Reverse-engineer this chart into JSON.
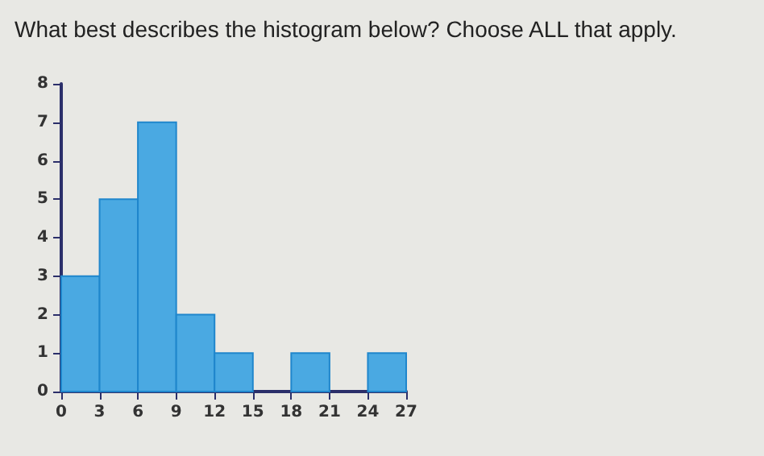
{
  "chart_data": {
    "type": "histogram",
    "title": "What best describes the histogram below? Choose ALL that apply.",
    "bins": [
      0,
      3,
      6,
      9,
      12,
      15,
      18,
      21,
      24,
      27
    ],
    "values": [
      3,
      5,
      7,
      2,
      1,
      0,
      1,
      0,
      1
    ],
    "color": "#4aa9e2",
    "xlim": [
      0,
      27
    ],
    "xticks": [
      0,
      3,
      6,
      9,
      12,
      15,
      18,
      21,
      24,
      27
    ],
    "ylim": [
      0,
      8
    ],
    "yticks": [
      0,
      1,
      2,
      3,
      4,
      5,
      6,
      7,
      8
    ],
    "grid": false
  }
}
